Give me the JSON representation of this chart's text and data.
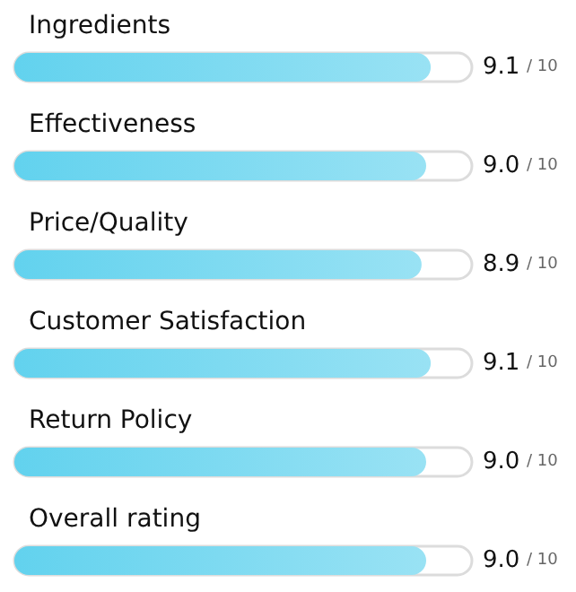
{
  "chart_data": {
    "type": "bar",
    "orientation": "horizontal",
    "categories": [
      "Ingredients",
      "Effectiveness",
      "Price/Quality",
      "Customer Satisfaction",
      "Return Policy",
      "Overall rating"
    ],
    "values": [
      9.1,
      9.0,
      8.9,
      9.1,
      9.0,
      9.0
    ],
    "value_labels": [
      "9.1",
      "9.0",
      "8.9",
      "9.1",
      "9.0",
      "9.0"
    ],
    "annotations": [
      "/ 10",
      "/ 10",
      "/ 10",
      "/ 10",
      "/ 10",
      "/ 10"
    ],
    "color": "#62d2ee",
    "xlim": [
      0,
      10
    ],
    "tick_labels": "y"
  }
}
